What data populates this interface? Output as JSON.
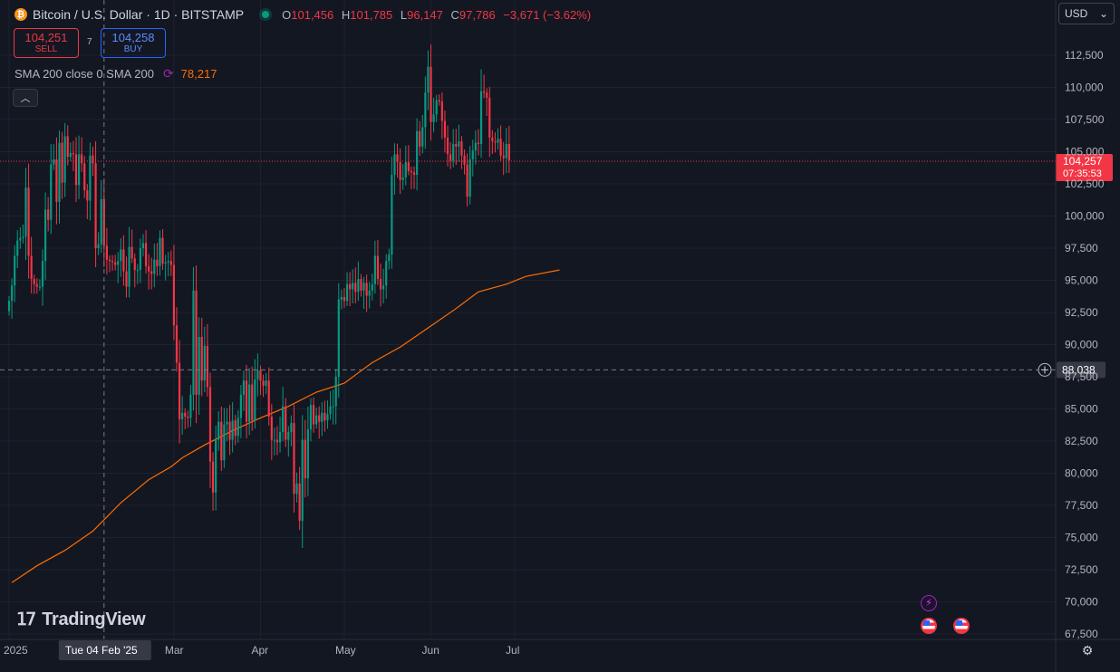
{
  "header": {
    "coin_glyph": "₿",
    "title": "Bitcoin / U.S. Dollar · 1D · BITSTAMP",
    "ohlc": {
      "o_label": "O",
      "o": "101,456",
      "h_label": "H",
      "h": "101,785",
      "l_label": "L",
      "l": "96,147",
      "c_label": "C",
      "c": "97,786",
      "change": "−3,671 (−3.62%)"
    },
    "status_color": "#089981"
  },
  "trade": {
    "sell_price": "104,251",
    "sell_label": "SELL",
    "spread": "7",
    "buy_price": "104,258",
    "buy_label": "BUY"
  },
  "indicator": {
    "label": "SMA 200 close 0 SMA 200",
    "icon": "refresh-icon",
    "value": "78,217",
    "color": "#ff6d00"
  },
  "collapse_icon": "chevron-up-icon",
  "currency": {
    "label": "USD",
    "icon": "chevron-down-icon"
  },
  "logo_text": "TradingView",
  "settings_icon": "gear-icon",
  "chart_data": {
    "type": "candlestick",
    "y_range": [
      67500,
      113000
    ],
    "price_ticks": [
      "112,500",
      "110,000",
      "107,500",
      "105,000",
      "102,500",
      "100,000",
      "97,500",
      "95,000",
      "92,500",
      "90,000",
      "87,500",
      "85,000",
      "82,500",
      "80,000",
      "77,500",
      "75,000",
      "72,500",
      "70,000",
      "67,500"
    ],
    "time_ticks": [
      {
        "label": "2025",
        "date": "2025-01-01"
      },
      {
        "label": "Mar",
        "date": "2025-03-01"
      },
      {
        "label": "Apr",
        "date": "2025-04-01"
      },
      {
        "label": "May",
        "date": "2025-05-01"
      },
      {
        "label": "Jun",
        "date": "2025-06-01"
      },
      {
        "label": "Jul",
        "date": "2025-07-01"
      }
    ],
    "first_date": "2025-01-01",
    "last_price": {
      "label": "104,257",
      "countdown": "07:35:53",
      "value": 104257
    },
    "crosshair": {
      "date_label": "Tue 04 Feb '25",
      "date": "2025-02-04",
      "price_label": "88,038",
      "price": 88038
    },
    "up_color": "#089981",
    "down_color": "#f23645",
    "sma_color": "#ff6d00",
    "closes": [
      93400,
      94600,
      96900,
      98100,
      98300,
      98400,
      102200,
      96900,
      95100,
      94700,
      94500,
      94500,
      96500,
      100500,
      99700,
      104000,
      104400,
      101100,
      105700,
      102600,
      106200,
      104600,
      104900,
      104800,
      102400,
      104800,
      104100,
      102000,
      101200,
      104700,
      104100,
      97500,
      97800,
      101300,
      97700,
      96600,
      96500,
      96400,
      96200,
      96500,
      97400,
      95700,
      94500,
      97600,
      96700,
      95800,
      95800,
      97500,
      97900,
      96100,
      95700,
      95500,
      96600,
      96100,
      98300,
      96300,
      96400,
      96500,
      96200,
      91500,
      88600,
      84200,
      84700,
      84400,
      84300,
      86100,
      94200,
      86100,
      90600,
      87200,
      89900,
      86700,
      80900,
      78500,
      82600,
      84000,
      81000,
      83800,
      84000,
      82600,
      84100,
      82900,
      84300,
      86100,
      87200,
      84000,
      86900,
      84100,
      87300,
      88000,
      87200,
      86800,
      87200,
      84400,
      82600,
      82600,
      82400,
      83200,
      85200,
      82600,
      83200,
      83900,
      78400,
      79200,
      76300,
      82600,
      79600,
      83400,
      85300,
      83800,
      84500,
      84000,
      84700,
      84100,
      84600,
      85200,
      85200,
      87500,
      93500,
      93700,
      93400,
      94700,
      94300,
      94800,
      94100,
      95100,
      94200,
      94800,
      93800,
      94200,
      94700,
      96900,
      95100,
      94300,
      94600,
      96500,
      97000,
      103200,
      104800,
      104200,
      102800,
      103000,
      104200,
      103500,
      103400,
      103200,
      106600,
      105400,
      106900,
      109600,
      111600,
      107300,
      107900,
      109000,
      108900,
      107400,
      106100,
      104800,
      104300,
      105600,
      105400,
      105800,
      104700,
      104000,
      101500,
      104400,
      105100,
      105700,
      105600,
      109700,
      109600,
      109200,
      106100,
      105800,
      105700,
      106000,
      104700,
      104500,
      105600,
      104300
    ],
    "sma200": [
      [
        1,
        71500
      ],
      [
        10,
        72800
      ],
      [
        20,
        74000
      ],
      [
        30,
        75500
      ],
      [
        35,
        76600
      ],
      [
        40,
        77700
      ],
      [
        45,
        78600
      ],
      [
        50,
        79500
      ],
      [
        58,
        80500
      ],
      [
        62,
        81200
      ],
      [
        70,
        82200
      ],
      [
        80,
        83300
      ],
      [
        90,
        84300
      ],
      [
        100,
        85200
      ],
      [
        110,
        86300
      ],
      [
        120,
        87000
      ],
      [
        125,
        87800
      ],
      [
        130,
        88600
      ],
      [
        140,
        89800
      ],
      [
        150,
        91300
      ],
      [
        160,
        92800
      ],
      [
        168,
        94100
      ],
      [
        178,
        94700
      ],
      [
        185,
        95300
      ],
      [
        197,
        95800
      ]
    ]
  }
}
